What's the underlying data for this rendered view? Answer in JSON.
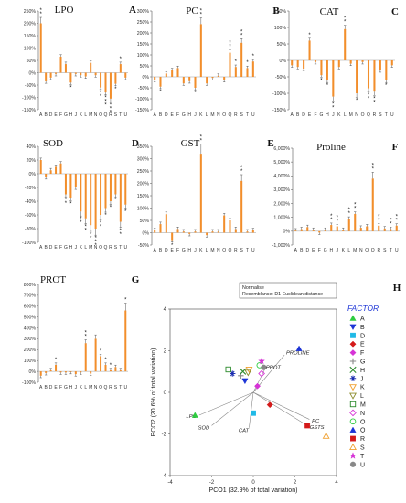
{
  "chart_data": [
    {
      "id": "lpo",
      "type": "bar",
      "title": "LPO",
      "panel_label": "A",
      "ylim": [
        -150,
        250
      ],
      "yticks": [
        -150,
        -100,
        -50,
        0,
        50,
        100,
        150,
        200,
        250
      ],
      "tick_suffix": "%",
      "categories": [
        "A",
        "B",
        "D",
        "E",
        "F",
        "G",
        "H",
        "J",
        "K",
        "L",
        "M",
        "N",
        "O",
        "Q",
        "R",
        "S",
        "T",
        "U"
      ],
      "values": [
        200,
        -35,
        -20,
        -5,
        65,
        35,
        -40,
        -5,
        -10,
        -15,
        40,
        -10,
        -60,
        -80,
        -105,
        -45,
        35,
        -20
      ],
      "stars": [
        2,
        0,
        0,
        0,
        0,
        0,
        1,
        0,
        0,
        0,
        0,
        0,
        2,
        3,
        3,
        1,
        1,
        0
      ]
    },
    {
      "id": "pc",
      "type": "bar",
      "title": "PC",
      "panel_label": "B",
      "ylim": [
        -150,
        300
      ],
      "yticks": [
        -150,
        -100,
        -50,
        0,
        50,
        100,
        150,
        200,
        250,
        300
      ],
      "tick_suffix": "%",
      "categories": [
        "A",
        "B",
        "D",
        "E",
        "F",
        "G",
        "H",
        "J",
        "K",
        "L",
        "M",
        "N",
        "O",
        "Q",
        "R",
        "S",
        "T",
        "U"
      ],
      "values": [
        -15,
        -45,
        15,
        30,
        40,
        -30,
        -20,
        -50,
        240,
        -30,
        -5,
        5,
        -15,
        110,
        45,
        155,
        40,
        70
      ],
      "stars": [
        0,
        1,
        0,
        0,
        0,
        0,
        0,
        1,
        2,
        0,
        0,
        0,
        0,
        2,
        1,
        2,
        1,
        1
      ]
    },
    {
      "id": "cat",
      "type": "bar",
      "title": "CAT",
      "panel_label": "C",
      "ylim": [
        -150,
        150
      ],
      "yticks": [
        -150,
        -100,
        -50,
        0,
        50,
        100,
        150
      ],
      "tick_suffix": "%",
      "categories": [
        "A",
        "B",
        "D",
        "E",
        "F",
        "G",
        "H",
        "J",
        "K",
        "L",
        "M",
        "N",
        "O",
        "Q",
        "R",
        "S",
        "T",
        "U"
      ],
      "values": [
        -15,
        -20,
        -25,
        60,
        -5,
        -45,
        -60,
        -110,
        -20,
        95,
        -10,
        -100,
        -5,
        -85,
        -95,
        -30,
        -60,
        -15
      ],
      "stars": [
        0,
        0,
        0,
        1,
        0,
        1,
        1,
        2,
        0,
        2,
        0,
        1,
        0,
        2,
        2,
        0,
        1,
        0
      ]
    },
    {
      "id": "sod",
      "type": "bar",
      "title": "SOD",
      "panel_label": "D",
      "ylim": [
        -100,
        40
      ],
      "yticks": [
        -100,
        -80,
        -60,
        -40,
        -20,
        0,
        20,
        40
      ],
      "tick_suffix": "%",
      "categories": [
        "A",
        "B",
        "D",
        "E",
        "F",
        "G",
        "H",
        "J",
        "K",
        "L",
        "M",
        "N",
        "O",
        "Q",
        "R",
        "S",
        "T",
        "U"
      ],
      "values": [
        20,
        -5,
        5,
        10,
        15,
        -30,
        -35,
        -20,
        -55,
        -65,
        -75,
        -80,
        -60,
        -50,
        -40,
        -30,
        -70,
        -45
      ],
      "stars": [
        0,
        0,
        0,
        0,
        0,
        2,
        1,
        0,
        2,
        2,
        2,
        3,
        2,
        1,
        1,
        1,
        2,
        1
      ]
    },
    {
      "id": "gst",
      "type": "bar",
      "title": "GST",
      "panel_label": "E",
      "ylim": [
        -50,
        350
      ],
      "yticks": [
        -50,
        0,
        50,
        100,
        150,
        200,
        250,
        300,
        350
      ],
      "tick_suffix": "%",
      "categories": [
        "A",
        "B",
        "D",
        "E",
        "F",
        "G",
        "H",
        "J",
        "K",
        "L",
        "M",
        "N",
        "O",
        "Q",
        "R",
        "S",
        "T",
        "U"
      ],
      "values": [
        10,
        35,
        75,
        -30,
        15,
        5,
        -5,
        5,
        320,
        -10,
        5,
        5,
        70,
        50,
        15,
        210,
        5,
        10
      ],
      "stars": [
        0,
        0,
        0,
        1,
        0,
        0,
        0,
        0,
        2,
        0,
        0,
        0,
        0,
        0,
        0,
        2,
        0,
        0
      ]
    },
    {
      "id": "proline",
      "type": "bar",
      "title": "Proline",
      "panel_label": "F",
      "ylim": [
        -1000,
        6000
      ],
      "yticks": [
        -1000,
        0,
        1000,
        2000,
        3000,
        4000,
        5000,
        6000
      ],
      "tick_suffix": "%",
      "categories": [
        "A",
        "B",
        "D",
        "E",
        "F",
        "G",
        "H",
        "J",
        "K",
        "L",
        "M",
        "N",
        "O",
        "Q",
        "R",
        "S",
        "T",
        "U"
      ],
      "values": [
        50,
        150,
        300,
        100,
        -100,
        100,
        450,
        350,
        100,
        900,
        1250,
        250,
        350,
        3800,
        400,
        200,
        150,
        400
      ],
      "stars": [
        0,
        0,
        0,
        0,
        0,
        0,
        2,
        2,
        0,
        2,
        2,
        0,
        0,
        2,
        2,
        0,
        2,
        2
      ]
    },
    {
      "id": "prot",
      "type": "bar",
      "title": "PROT",
      "panel_label": "G",
      "ylim": [
        -100,
        800
      ],
      "yticks": [
        -100,
        0,
        100,
        200,
        300,
        400,
        500,
        600,
        700,
        800
      ],
      "tick_suffix": "%",
      "categories": [
        "A",
        "B",
        "D",
        "E",
        "F",
        "G",
        "H",
        "J",
        "K",
        "L",
        "M",
        "N",
        "O",
        "Q",
        "R",
        "S",
        "T",
        "U"
      ],
      "values": [
        -40,
        -15,
        10,
        60,
        -10,
        -10,
        -5,
        -25,
        -10,
        260,
        -20,
        300,
        140,
        60,
        10,
        40,
        10,
        560
      ],
      "stars": [
        0,
        0,
        0,
        1,
        0,
        0,
        0,
        0,
        0,
        2,
        0,
        0,
        1,
        1,
        1,
        0,
        0,
        1
      ]
    },
    {
      "id": "pco",
      "type": "scatter",
      "panel_label": "H",
      "xlabel": "PCO1 (32.9% of total variation)",
      "ylabel": "PCO2 (20.6% of total variation)",
      "xlim": [
        -4,
        4
      ],
      "ylim": [
        -4,
        4
      ],
      "xticks": [
        -4,
        -2,
        0,
        2,
        4
      ],
      "yticks": [
        -4,
        -2,
        0,
        2,
        4
      ],
      "info_box": [
        "Normalise",
        "Resemblance: D1 Euclidean distance"
      ],
      "legend_title": "FACTOR",
      "points": [
        {
          "label": "A",
          "x": -2.8,
          "y": -1.1,
          "color": "#2ecc40",
          "shape": "triangle-up"
        },
        {
          "label": "B",
          "x": -0.4,
          "y": 0.55,
          "color": "#1d35d6",
          "shape": "triangle-down"
        },
        {
          "label": "D",
          "x": 0.0,
          "y": -1.0,
          "color": "#1fb9e6",
          "shape": "square"
        },
        {
          "label": "E",
          "x": 0.8,
          "y": -0.6,
          "color": "#d41a1a",
          "shape": "diamond"
        },
        {
          "label": "F",
          "x": 0.2,
          "y": 0.3,
          "color": "#d633d6",
          "shape": "diamond"
        },
        {
          "label": "G",
          "x": -0.6,
          "y": 0.8,
          "color": "#888888",
          "shape": "plus"
        },
        {
          "label": "H",
          "x": -0.5,
          "y": 1.0,
          "color": "#2e8b2e",
          "shape": "x"
        },
        {
          "label": "J",
          "x": -1.0,
          "y": 0.9,
          "color": "#1d2fb0",
          "shape": "asterisk"
        },
        {
          "label": "K",
          "x": -0.2,
          "y": 1.1,
          "color": "#f0a030",
          "shape": "triangle-down-open"
        },
        {
          "label": "L",
          "x": -0.25,
          "y": 0.95,
          "color": "#8a8a2a",
          "shape": "triangle-down-open"
        },
        {
          "label": "M",
          "x": -1.2,
          "y": 1.1,
          "color": "#2a8a2a",
          "shape": "square-open"
        },
        {
          "label": "N",
          "x": 0.4,
          "y": 0.9,
          "color": "#d633d6",
          "shape": "diamond-open"
        },
        {
          "label": "O",
          "x": 0.3,
          "y": 1.3,
          "color": "#2ecc40",
          "shape": "circle-open"
        },
        {
          "label": "Q",
          "x": 2.2,
          "y": 2.1,
          "color": "#1d35d6",
          "shape": "triangle-up"
        },
        {
          "label": "R",
          "x": 2.6,
          "y": -1.6,
          "color": "#d41a1a",
          "shape": "square"
        },
        {
          "label": "S",
          "x": 3.5,
          "y": -2.1,
          "color": "#f0a030",
          "shape": "triangle-up-open"
        },
        {
          "label": "T",
          "x": 0.4,
          "y": 1.5,
          "color": "#d633d6",
          "shape": "star"
        },
        {
          "label": "U",
          "x": 0.5,
          "y": 1.2,
          "color": "#888888",
          "shape": "circle"
        }
      ],
      "vectors": [
        {
          "label": "PROLINE",
          "x": 1.5,
          "y": 1.8
        },
        {
          "label": "PROT",
          "x": 0.55,
          "y": 1.1
        },
        {
          "label": "PC",
          "x": 2.7,
          "y": -1.3
        },
        {
          "label": "GSTS",
          "x": 2.6,
          "y": -1.6
        },
        {
          "label": "LPO",
          "x": -2.6,
          "y": -1.1
        },
        {
          "label": "SOD",
          "x": -2.0,
          "y": -1.6
        },
        {
          "label": "CAT",
          "x": -0.2,
          "y": -1.7
        }
      ]
    }
  ],
  "colors": {
    "bar": "#f28e2b",
    "error": "#555555",
    "vector": "#888888"
  }
}
